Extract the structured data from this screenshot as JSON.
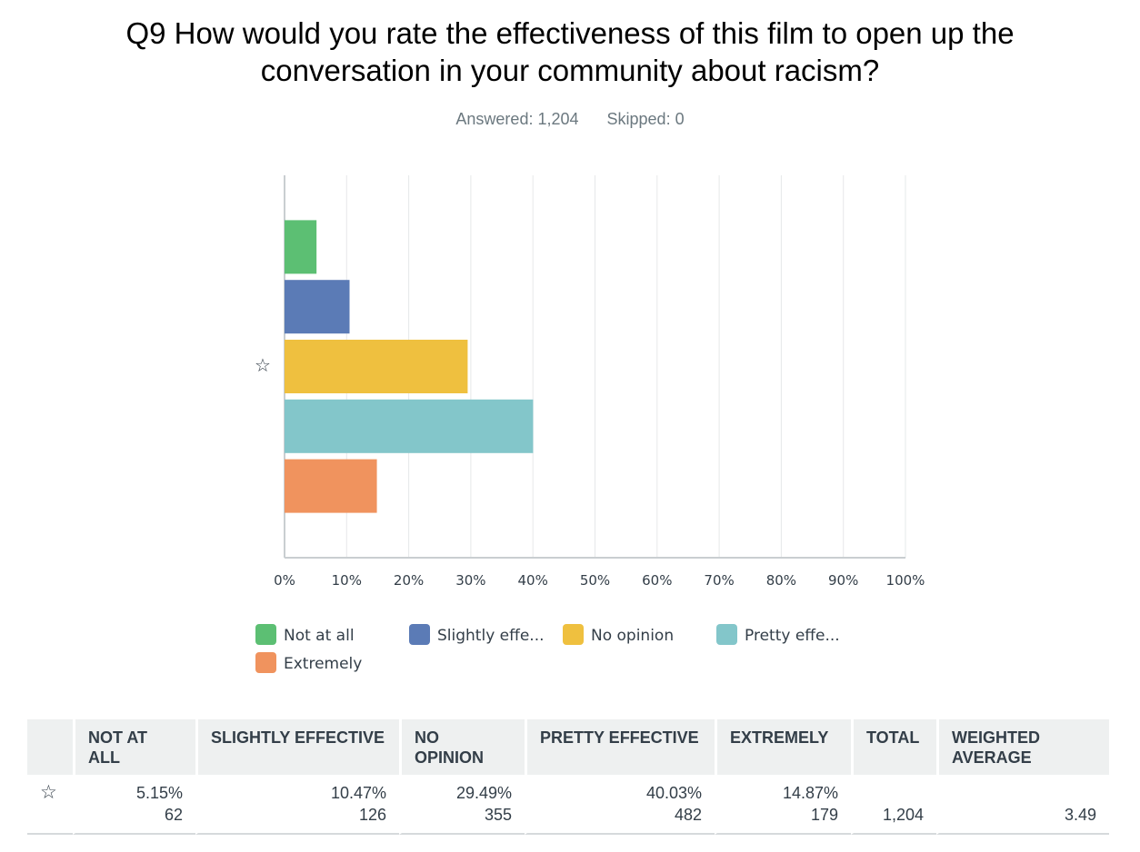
{
  "question": {
    "title": "Q9 How would you rate the effectiveness of this film to open up the conversation in your community about racism?",
    "answered": "Answered: 1,204",
    "skipped": "Skipped: 0"
  },
  "chart_data": {
    "type": "bar",
    "orientation": "horizontal",
    "categories": [
      "Not at all",
      "Slightly effective",
      "No opinion",
      "Pretty effective",
      "Extremely"
    ],
    "values": [
      5.15,
      10.47,
      29.49,
      40.03,
      14.87
    ],
    "colors": [
      "#5cbf73",
      "#5b7bb6",
      "#efc03f",
      "#83c6ca",
      "#f0935e"
    ],
    "xlim": [
      0,
      100
    ],
    "x_ticks": [
      "0%",
      "10%",
      "20%",
      "30%",
      "40%",
      "50%",
      "60%",
      "70%",
      "80%",
      "90%",
      "100%"
    ],
    "grid": true,
    "legend": [
      "Not at all",
      "Slightly effe...",
      "No opinion",
      "Pretty effe...",
      "Extremely"
    ],
    "legend_position": "bottom",
    "highlighted_category": "No opinion"
  },
  "table": {
    "headers": [
      "NOT AT ALL",
      "SLIGHTLY EFFECTIVE",
      "NO OPINION",
      "PRETTY EFFECTIVE",
      "EXTREMELY",
      "TOTAL",
      "WEIGHTED AVERAGE"
    ],
    "row": {
      "icon": "star-icon",
      "percents": [
        "5.15%",
        "10.47%",
        "29.49%",
        "40.03%",
        "14.87%"
      ],
      "counts": [
        "62",
        "126",
        "355",
        "482",
        "179"
      ],
      "total": "1,204",
      "weighted_average": "3.49"
    }
  },
  "icons": {
    "highlight": "☆"
  }
}
